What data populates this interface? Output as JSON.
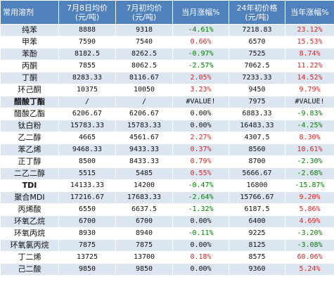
{
  "headers": {
    "col0": "常用溶剂",
    "col1_line1": "7月8日均价",
    "col1_line2": "(元/吨)",
    "col2_line1": "7月初均价",
    "col2_line2": "(元/吨)",
    "col3": "当月涨幅%",
    "col4_line1": "24年初价格",
    "col4_line2": "(元/吨)",
    "col5": "当年涨幅%"
  },
  "colors": {
    "header_bg": "#4f81bd",
    "band_blue": "#dce6f1",
    "band_white": "#ffffff",
    "rise": "#e02020",
    "fall": "#008000"
  },
  "rows": [
    {
      "name": "纯苯",
      "price_jul8": "8888",
      "price_jul_start": "9318",
      "month_change": "-4.61%",
      "price_2024_start": "7218.83",
      "year_change": "23.12%",
      "month_class": "neg",
      "year_class": "pos",
      "name_bold": false
    },
    {
      "name": "甲苯",
      "price_jul8": "7590",
      "price_jul_start": "7540",
      "month_change": "0.66%",
      "price_2024_start": "6570",
      "year_change": "15.53%",
      "month_class": "pos",
      "year_class": "pos",
      "name_bold": false
    },
    {
      "name": "苯酚",
      "price_jul8": "8182.5",
      "price_jul_start": "8262.5",
      "month_change": "-0.97%",
      "price_2024_start": "7525",
      "year_change": "8.74%",
      "month_class": "neg",
      "year_class": "pos",
      "name_bold": false
    },
    {
      "name": "丙酮",
      "price_jul8": "7855",
      "price_jul_start": "8062.5",
      "month_change": "-2.57%",
      "price_2024_start": "7062.5",
      "year_change": "11.22%",
      "month_class": "neg",
      "year_class": "pos",
      "name_bold": false
    },
    {
      "name": "丁酮",
      "price_jul8": "8283.33",
      "price_jul_start": "8116.67",
      "month_change": "2.05%",
      "price_2024_start": "7233.33",
      "year_change": "14.52%",
      "month_class": "pos",
      "year_class": "pos",
      "name_bold": false
    },
    {
      "name": "环己酮",
      "price_jul8": "10375",
      "price_jul_start": "10050",
      "month_change": "3.23%",
      "price_2024_start": "9450",
      "year_change": "9.79%",
      "month_class": "pos",
      "year_class": "pos",
      "name_bold": false
    },
    {
      "name": "醋酸丁酯",
      "price_jul8": "/",
      "price_jul_start": "/",
      "month_change": "#VALUE!",
      "price_2024_start": "7975",
      "year_change": "#VALUE!",
      "month_class": "plain",
      "year_class": "plain",
      "name_bold": true
    },
    {
      "name": "醋酸乙酯",
      "price_jul8": "6206.67",
      "price_jul_start": "6206.67",
      "month_change": "0.00%",
      "price_2024_start": "6883.33",
      "year_change": "-9.83%",
      "month_class": "zero",
      "year_class": "neg",
      "name_bold": false
    },
    {
      "name": "钛白粉",
      "price_jul8": "15783.33",
      "price_jul_start": "15783.33",
      "month_change": "0.00%",
      "price_2024_start": "16483.33",
      "year_change": "-4.25%",
      "month_class": "zero",
      "year_class": "neg",
      "name_bold": false
    },
    {
      "name": "乙二醇",
      "price_jul8": "4665",
      "price_jul_start": "4561.67",
      "month_change": "2.27%",
      "price_2024_start": "4307.5",
      "year_change": "8.30%",
      "month_class": "pos",
      "year_class": "pos",
      "name_bold": false
    },
    {
      "name": "苯乙烯",
      "price_jul8": "9468.33",
      "price_jul_start": "9433.33",
      "month_change": "0.37%",
      "price_2024_start": "8560",
      "year_change": "10.61%",
      "month_class": "pos",
      "year_class": "pos",
      "name_bold": false
    },
    {
      "name": "正丁醇",
      "price_jul8": "8500",
      "price_jul_start": "8433.33",
      "month_change": "0.79%",
      "price_2024_start": "8700",
      "year_change": "-2.30%",
      "month_class": "pos",
      "year_class": "neg",
      "name_bold": false
    },
    {
      "name": "二乙二醇",
      "price_jul8": "5515",
      "price_jul_start": "5485",
      "month_change": "0.55%",
      "price_2024_start": "5666.67",
      "year_change": "-2.68%",
      "month_class": "pos",
      "year_class": "neg",
      "name_bold": false
    },
    {
      "name": "TDI",
      "price_jul8": "14133.33",
      "price_jul_start": "14200",
      "month_change": "-0.47%",
      "price_2024_start": "16800",
      "year_change": "-15.87%",
      "month_class": "neg",
      "year_class": "neg",
      "name_bold": true
    },
    {
      "name": "聚合MDI",
      "price_jul8": "17216.67",
      "price_jul_start": "17683.33",
      "month_change": "-2.64%",
      "price_2024_start": "15766.67",
      "year_change": "9.20%",
      "month_class": "neg",
      "year_class": "pos",
      "name_bold": false
    },
    {
      "name": "丙烯酸",
      "price_jul8": "6550",
      "price_jul_start": "6637.5",
      "month_change": "-1.32%",
      "price_2024_start": "6187.5",
      "year_change": "5.86%",
      "month_class": "neg",
      "year_class": "pos",
      "name_bold": false
    },
    {
      "name": "环氧乙烷",
      "price_jul8": "6700",
      "price_jul_start": "6700",
      "month_change": "0.00%",
      "price_2024_start": "6400",
      "year_change": "4.69%",
      "month_class": "zero",
      "year_class": "pos",
      "name_bold": false
    },
    {
      "name": "环氧丙烷",
      "price_jul8": "8930",
      "price_jul_start": "8940",
      "month_change": "-0.11%",
      "price_2024_start": "9225",
      "year_change": "-3.20%",
      "month_class": "neg",
      "year_class": "neg",
      "name_bold": false
    },
    {
      "name": "环氧氯丙烷",
      "price_jul8": "7875",
      "price_jul_start": "7875",
      "month_change": "0.00%",
      "price_2024_start": "8125",
      "year_change": "-3.08%",
      "month_class": "zero",
      "year_class": "neg",
      "name_bold": false
    },
    {
      "name": "丁二烯",
      "price_jul8": "13725",
      "price_jul_start": "13700",
      "month_change": "0.18%",
      "price_2024_start": "8575",
      "year_change": "60.06%",
      "month_class": "pos",
      "year_class": "pos",
      "name_bold": false
    },
    {
      "name": "己二酸",
      "price_jul8": "9850",
      "price_jul_start": "9850",
      "month_change": "0.00%",
      "price_2024_start": "9360",
      "year_change": "5.24%",
      "month_class": "zero",
      "year_class": "pos",
      "name_bold": false
    }
  ]
}
